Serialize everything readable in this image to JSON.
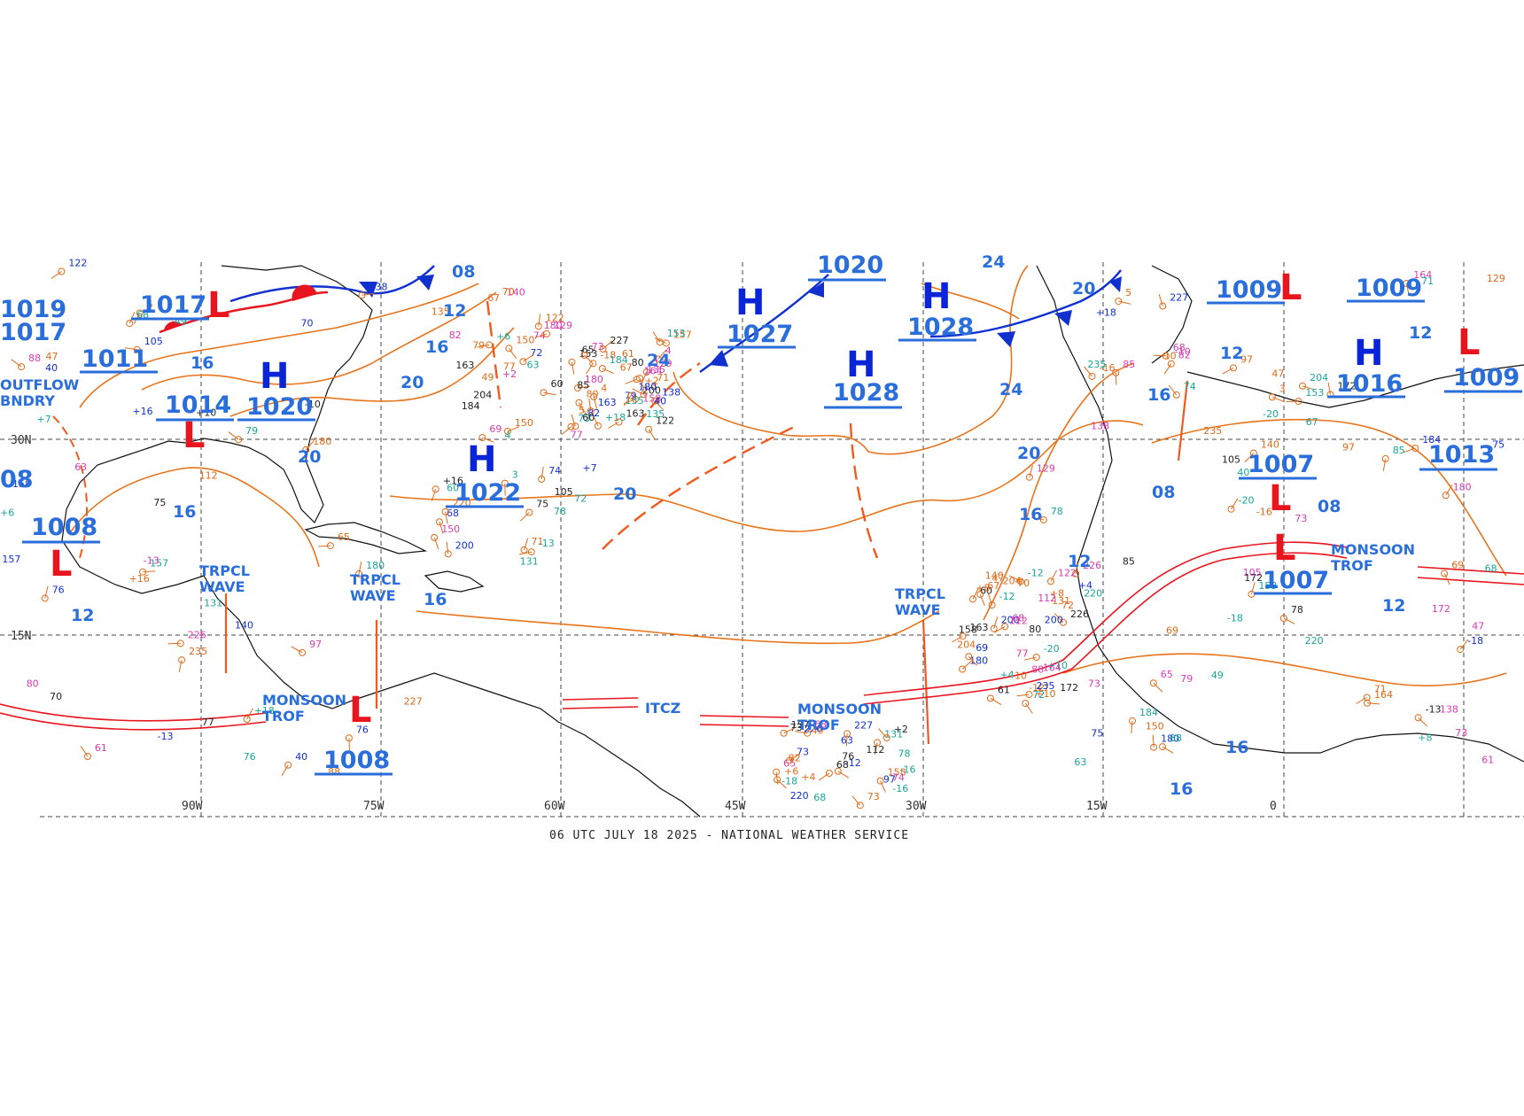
{
  "map": {
    "footer_text": "06 UTC JULY 18 2025 - NATIONAL WEATHER SERVICE",
    "colors": {
      "isobar": "#e8741c",
      "trough": "#f05a1e",
      "high": "#0a24d8",
      "low": "#e8141e",
      "label_blue": "#2a6edb",
      "cold_front": "#1030d0",
      "warm_front": "#e8141e",
      "itcz": "#e8141e",
      "grid": "#444444",
      "coast": "#111111",
      "station_orange": "#e06a18",
      "station_magenta": "#d63cb4",
      "station_teal": "#1aa59a"
    },
    "longitude_labels": [
      "90W",
      "75W",
      "60W",
      "45W",
      "30W",
      "15W",
      "0"
    ],
    "latitude_labels": [
      "15N",
      "30N"
    ],
    "highs": [
      {
        "letter": "H",
        "pressure": "1027"
      },
      {
        "letter": "H",
        "pressure": "1020"
      },
      {
        "letter": "H",
        "pressure": "1028"
      },
      {
        "letter": "H",
        "pressure": "1028"
      },
      {
        "letter": "H",
        "pressure": "1022"
      },
      {
        "letter": "H",
        "pressure": "1020"
      },
      {
        "letter": "H",
        "pressure": "1016"
      },
      {
        "letter": "H",
        "pressure": "1009"
      },
      {
        "letter": "H",
        "pressure": "1013"
      }
    ],
    "lows": [
      {
        "letter": "L",
        "pressure": "1017"
      },
      {
        "letter": "L",
        "pressure": "1014"
      },
      {
        "letter": "L",
        "pressure": "1008"
      },
      {
        "letter": "L",
        "pressure": "1008"
      },
      {
        "letter": "L",
        "pressure": "1009"
      },
      {
        "letter": "L",
        "pressure": "1007"
      },
      {
        "letter": "L",
        "pressure": "1007"
      },
      {
        "letter": "L",
        "pressure": "1009"
      }
    ],
    "edge_pressures": [
      "1019",
      "1017",
      "1011",
      "08"
    ],
    "isobar_labels": [
      "08",
      "12",
      "16",
      "20",
      "24",
      "24",
      "20",
      "16",
      "20",
      "24",
      "20",
      "16",
      "12",
      "08",
      "08",
      "12",
      "16",
      "16",
      "12",
      "16",
      "16",
      "12",
      "20",
      "16",
      "12"
    ],
    "features": {
      "tropical_wave_1": "TRPCL\nWAVE",
      "tropical_wave_2": "TRPCL\nWAVE",
      "tropical_wave_3": "TRPCL\nWAVE",
      "monsoon_trof_1": "MONSOON\nTROF",
      "monsoon_trof_2": "MONSOON\nTROF",
      "monsoon_trof_3": "MONSOON\nTROF",
      "itcz": "ITCZ",
      "outflow_boundary": "OUTFLOW\nBNDRY"
    },
    "station_values": [
      "68",
      "180",
      "73",
      "150",
      "163",
      "235",
      "226",
      "227",
      "220",
      "204",
      "200",
      "184",
      "180",
      "172",
      "164",
      "158",
      "157",
      "153",
      "140",
      "138",
      "135",
      "131",
      "129",
      "122",
      "112",
      "105",
      "97",
      "88",
      "85",
      "82",
      "80",
      "79",
      "78",
      "77",
      "76",
      "75",
      "74",
      "73",
      "72",
      "71",
      "70",
      "69",
      "68",
      "67",
      "65",
      "63",
      "61",
      "60",
      "49",
      "47",
      "40",
      "-10",
      "-12",
      "-13",
      "-16",
      "-18",
      "-20",
      "+2",
      "+4",
      "+6",
      "+7",
      "+8",
      "+10",
      "+16",
      "+18",
      "3",
      "4",
      "5"
    ]
  }
}
